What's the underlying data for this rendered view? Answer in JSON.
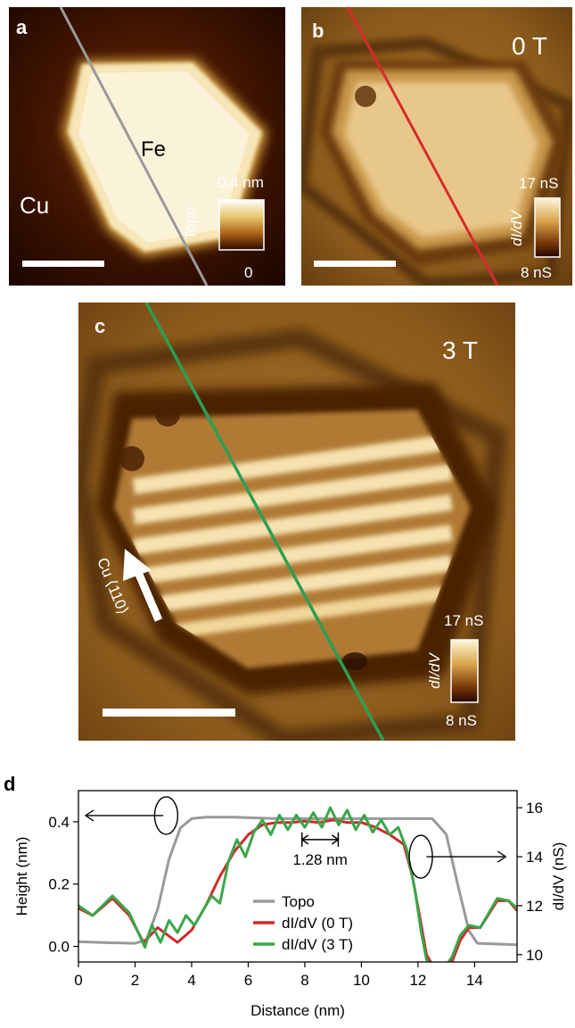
{
  "panels": {
    "a": {
      "label": "a",
      "region_label": "Cu",
      "island_label": "Fe",
      "colorbar": {
        "title": "Topo",
        "max": "0.4 nm",
        "min": "0"
      }
    },
    "b": {
      "label": "b",
      "field": "0 T",
      "colorbar": {
        "title": "dI/dV",
        "max": "17 nS",
        "min": "8 nS"
      }
    },
    "c": {
      "label": "c",
      "field": "3 T",
      "direction_label": "Cu ⟨110⟩",
      "colorbar": {
        "title": "dI/dV",
        "max": "17 nS",
        "min": "8 nS"
      }
    },
    "d": {
      "label": "d",
      "spacing_annotation": "1.28 nm"
    }
  },
  "colors": {
    "topo_line": "#999999",
    "didv_0T": "#d02a2a",
    "didv_3T": "#3aa64a",
    "cut_line_b": "#d62b2b",
    "cut_line_c": "#2e9e52"
  },
  "chart_data": {
    "type": "line",
    "xlabel": "Distance (nm)",
    "ylabel_left": "Height (nm)",
    "ylabel_right": "dI/dV (nS)",
    "xlim": [
      0,
      15.5
    ],
    "ylim_left": [
      -0.05,
      0.5
    ],
    "ylim_right": [
      9.7,
      16.7
    ],
    "x_ticks": [
      0,
      2,
      4,
      6,
      8,
      10,
      12,
      14
    ],
    "y_ticks_left": [
      0.0,
      0.2,
      0.4
    ],
    "y_ticks_right": [
      10,
      12,
      14,
      16
    ],
    "legend_position": "bottom-center",
    "series": [
      {
        "name": "Topo",
        "axis": "left",
        "color": "#999999",
        "x": [
          0,
          1,
          2,
          2.4,
          2.8,
          3.2,
          3.6,
          4.0,
          4.5,
          5.5,
          7,
          9,
          11,
          12.5,
          13.0,
          13.4,
          13.8,
          14.1,
          15.5
        ],
        "y": [
          0.015,
          0.012,
          0.01,
          0.02,
          0.12,
          0.28,
          0.38,
          0.41,
          0.415,
          0.415,
          0.41,
          0.41,
          0.41,
          0.41,
          0.36,
          0.2,
          0.05,
          0.01,
          0.005
        ]
      },
      {
        "name": "dI/dV (0 T)",
        "axis": "right",
        "color": "#d02a2a",
        "x": [
          0,
          0.5,
          1.2,
          1.8,
          2.3,
          2.8,
          3.5,
          4.0,
          4.5,
          5.0,
          5.5,
          6.0,
          6.5,
          7.0,
          7.5,
          8.0,
          8.5,
          9.0,
          9.5,
          10.0,
          10.5,
          11.0,
          11.5,
          11.8,
          12.1,
          12.3,
          12.6,
          12.9,
          13.2,
          13.5,
          13.8,
          14.2,
          14.8,
          15.2,
          15.5
        ],
        "y": [
          11.9,
          11.6,
          12.3,
          11.6,
          10.5,
          11.1,
          10.5,
          11.0,
          12.0,
          13.2,
          14.2,
          14.9,
          15.3,
          15.4,
          15.4,
          15.45,
          15.4,
          15.5,
          15.4,
          15.4,
          15.2,
          14.9,
          14.5,
          13.2,
          11.3,
          10.0,
          9.4,
          9.4,
          9.7,
          10.6,
          11.1,
          11.1,
          12.2,
          12.2,
          11.8
        ]
      },
      {
        "name": "dI/dV (3 T)",
        "axis": "right",
        "color": "#3aa64a",
        "x": [
          0,
          0.5,
          1.2,
          1.8,
          2.35,
          2.6,
          2.9,
          3.2,
          3.5,
          3.8,
          4.1,
          4.4,
          4.7,
          5.0,
          5.3,
          5.6,
          5.9,
          6.2,
          6.5,
          6.8,
          7.1,
          7.4,
          7.7,
          8.0,
          8.3,
          8.6,
          8.9,
          9.2,
          9.5,
          9.8,
          10.1,
          10.4,
          10.7,
          11.0,
          11.3,
          11.6,
          11.9,
          12.1,
          12.3,
          12.6,
          12.9,
          13.2,
          13.5,
          13.8,
          14.2,
          14.8,
          15.2,
          15.5
        ],
        "y": [
          12.0,
          11.6,
          12.4,
          11.7,
          10.3,
          11.2,
          10.5,
          11.4,
          10.9,
          11.6,
          11.2,
          11.8,
          12.4,
          12.1,
          13.8,
          14.7,
          14.0,
          15.0,
          15.5,
          14.9,
          15.7,
          15.1,
          15.7,
          15.2,
          15.8,
          15.2,
          16.0,
          15.3,
          15.9,
          15.1,
          15.7,
          15.0,
          15.5,
          14.9,
          15.2,
          14.3,
          12.6,
          11.0,
          9.8,
          9.4,
          9.4,
          9.9,
          10.8,
          11.2,
          11.1,
          12.3,
          12.2,
          11.9
        ]
      }
    ]
  }
}
